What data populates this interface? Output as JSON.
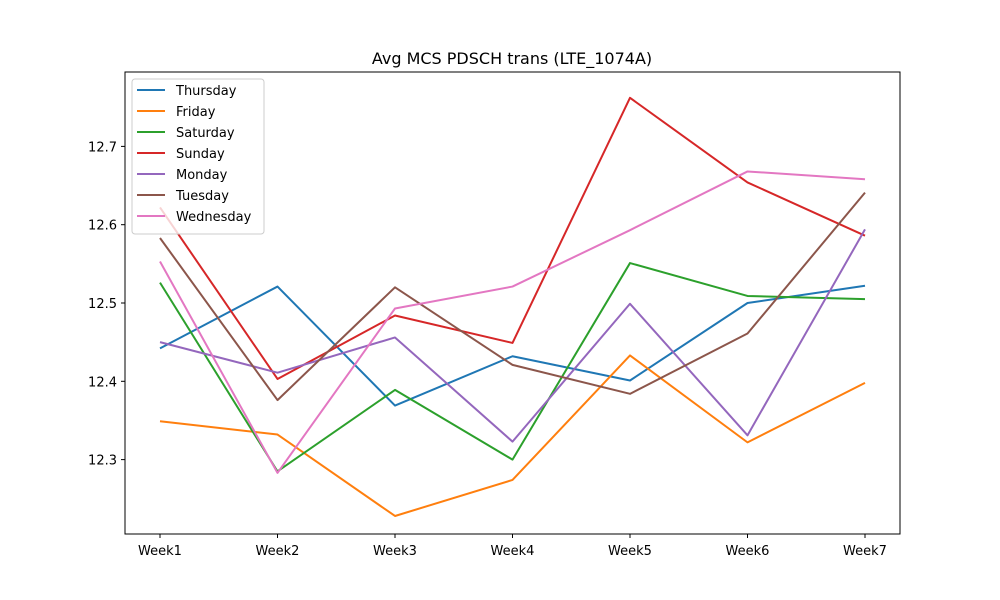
{
  "chart_data": {
    "type": "line",
    "title": "Avg MCS PDSCH trans (LTE_1074A)",
    "xlabel": "",
    "ylabel": "",
    "categories": [
      "Week1",
      "Week2",
      "Week3",
      "Week4",
      "Week5",
      "Week6",
      "Week7"
    ],
    "ylim": [
      12.205,
      12.795
    ],
    "yticks": [
      12.3,
      12.4,
      12.5,
      12.6,
      12.7
    ],
    "ytick_labels": [
      "12.3",
      "12.4",
      "12.5",
      "12.6",
      "12.7"
    ],
    "grid": false,
    "legend_position": "top-left",
    "series": [
      {
        "name": "Thursday",
        "color": "#1f77b4",
        "values": [
          12.442,
          12.521,
          12.369,
          12.432,
          12.401,
          12.5,
          12.522
        ]
      },
      {
        "name": "Friday",
        "color": "#ff7f0e",
        "values": [
          12.349,
          12.332,
          12.228,
          12.274,
          12.433,
          12.322,
          12.398
        ]
      },
      {
        "name": "Saturday",
        "color": "#2ca02c",
        "values": [
          12.526,
          12.285,
          12.389,
          12.3,
          12.551,
          12.509,
          12.505
        ]
      },
      {
        "name": "Sunday",
        "color": "#d62728",
        "values": [
          12.622,
          12.403,
          12.484,
          12.449,
          12.762,
          12.654,
          12.586
        ]
      },
      {
        "name": "Monday",
        "color": "#9467bd",
        "values": [
          12.45,
          12.411,
          12.456,
          12.323,
          12.499,
          12.331,
          12.594
        ]
      },
      {
        "name": "Tuesday",
        "color": "#8c564b",
        "values": [
          12.583,
          12.376,
          12.52,
          12.421,
          12.384,
          12.461,
          12.641
        ]
      },
      {
        "name": "Wednesday",
        "color": "#e377c2",
        "values": [
          12.553,
          12.283,
          12.493,
          12.521,
          12.593,
          12.668,
          12.658
        ]
      }
    ]
  }
}
